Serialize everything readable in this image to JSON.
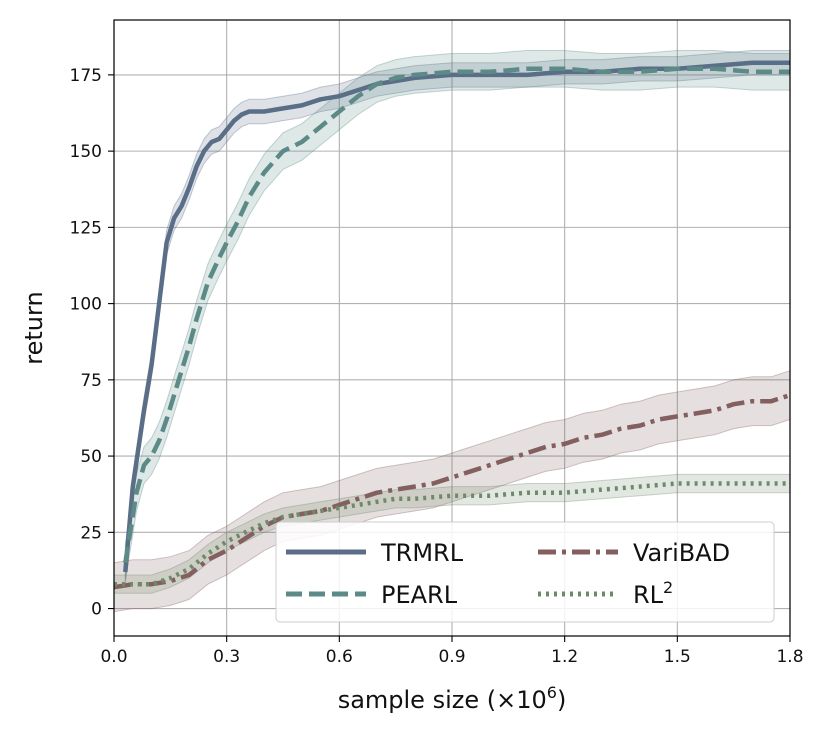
{
  "chart_data": {
    "type": "line",
    "xlabel": "sample size (×10",
    "xlabel_exp": "6",
    "xlabel_close": ")",
    "ylabel": "return",
    "xlim": [
      0,
      1.8
    ],
    "ylim": [
      -9,
      193
    ],
    "xticks": [
      0.0,
      0.3,
      0.6,
      0.9,
      1.2,
      1.5,
      1.8
    ],
    "xtick_labels": [
      "0.0",
      "0.3",
      "0.6",
      "0.9",
      "1.2",
      "1.5",
      "1.8"
    ],
    "yticks": [
      0,
      25,
      50,
      75,
      100,
      125,
      150,
      175
    ],
    "ytick_labels": [
      "0",
      "25",
      "50",
      "75",
      "100",
      "125",
      "150",
      "175"
    ],
    "grid": true,
    "legend_position": "bottom-right",
    "series": [
      {
        "name": "TRMRL",
        "color": "#5a6e87",
        "style": "solid",
        "band": 4,
        "x": [
          0.03,
          0.05,
          0.08,
          0.1,
          0.12,
          0.14,
          0.16,
          0.18,
          0.2,
          0.22,
          0.24,
          0.26,
          0.28,
          0.3,
          0.32,
          0.34,
          0.36,
          0.4,
          0.45,
          0.5,
          0.55,
          0.6,
          0.65,
          0.7,
          0.75,
          0.8,
          0.9,
          1.0,
          1.1,
          1.2,
          1.3,
          1.4,
          1.5,
          1.6,
          1.7,
          1.8
        ],
        "y": [
          12,
          40,
          65,
          80,
          100,
          120,
          128,
          132,
          138,
          145,
          150,
          153,
          154,
          157,
          160,
          162,
          163,
          163,
          164,
          165,
          167,
          168,
          170,
          172,
          173,
          174,
          175,
          175,
          175,
          176,
          176,
          177,
          177,
          178,
          179,
          179
        ]
      },
      {
        "name": "PEARL",
        "color": "#5b8a87",
        "style": "dashed",
        "band": 6,
        "x": [
          0.03,
          0.06,
          0.08,
          0.1,
          0.12,
          0.14,
          0.16,
          0.18,
          0.2,
          0.22,
          0.25,
          0.28,
          0.3,
          0.33,
          0.36,
          0.4,
          0.45,
          0.5,
          0.55,
          0.6,
          0.65,
          0.7,
          0.75,
          0.8,
          0.9,
          1.0,
          1.1,
          1.2,
          1.3,
          1.4,
          1.5,
          1.6,
          1.7,
          1.8
        ],
        "y": [
          15,
          38,
          47,
          50,
          55,
          62,
          70,
          78,
          86,
          95,
          107,
          115,
          120,
          127,
          135,
          143,
          150,
          153,
          158,
          163,
          168,
          172,
          174,
          175,
          176,
          176,
          177,
          177,
          176,
          176,
          177,
          177,
          176,
          176
        ]
      },
      {
        "name": "VariBAD",
        "color": "#845f5f",
        "style": "dashdot",
        "band": 8,
        "x": [
          0.0,
          0.05,
          0.1,
          0.15,
          0.2,
          0.25,
          0.3,
          0.35,
          0.4,
          0.45,
          0.5,
          0.55,
          0.6,
          0.65,
          0.7,
          0.75,
          0.8,
          0.85,
          0.9,
          0.95,
          1.0,
          1.05,
          1.1,
          1.15,
          1.2,
          1.25,
          1.3,
          1.35,
          1.4,
          1.45,
          1.5,
          1.55,
          1.6,
          1.65,
          1.7,
          1.75,
          1.8
        ],
        "y": [
          7,
          8,
          8,
          9,
          11,
          16,
          19,
          23,
          27,
          30,
          31,
          32,
          34,
          36,
          38,
          39,
          40,
          41,
          43,
          45,
          47,
          49,
          51,
          53,
          54,
          56,
          57,
          59,
          60,
          62,
          63,
          64,
          65,
          67,
          68,
          68,
          70
        ]
      },
      {
        "name": "RL",
        "name_sup": "2",
        "color": "#6d8a6a",
        "style": "dotted",
        "band": 3,
        "x": [
          0.0,
          0.05,
          0.1,
          0.15,
          0.2,
          0.25,
          0.3,
          0.35,
          0.4,
          0.45,
          0.5,
          0.55,
          0.6,
          0.65,
          0.7,
          0.75,
          0.8,
          0.9,
          1.0,
          1.1,
          1.2,
          1.3,
          1.4,
          1.5,
          1.6,
          1.7,
          1.8
        ],
        "y": [
          8,
          8,
          8,
          10,
          13,
          18,
          22,
          25,
          28,
          30,
          31,
          32,
          33,
          34,
          35,
          36,
          36,
          37,
          37,
          38,
          38,
          39,
          40,
          41,
          41,
          41,
          41
        ]
      }
    ]
  }
}
